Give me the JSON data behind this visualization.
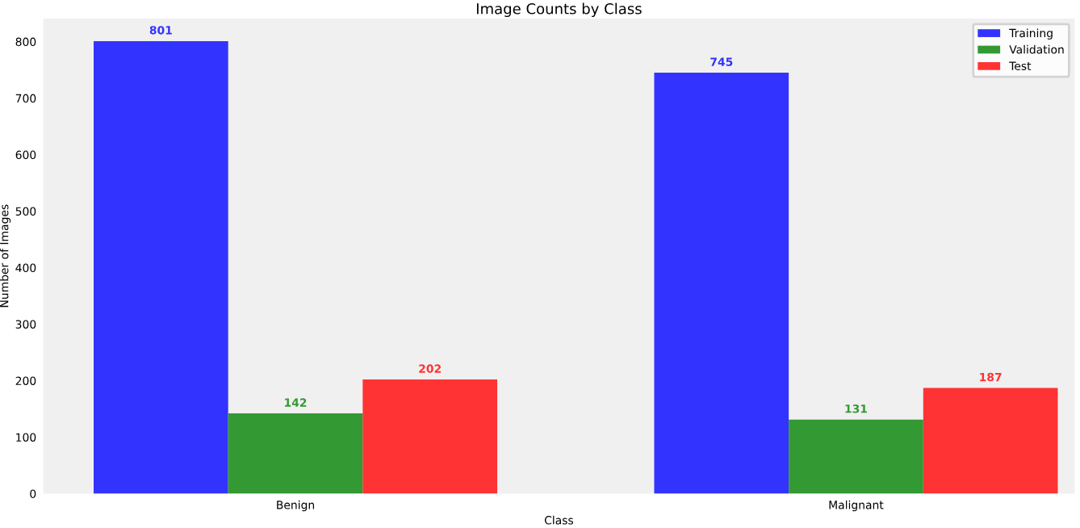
{
  "chart_data": {
    "type": "bar",
    "title": "Image Counts by Class",
    "xlabel": "Class",
    "ylabel": "Number of Images",
    "categories": [
      "Benign",
      "Malignant"
    ],
    "series": [
      {
        "name": "Training",
        "color": "#3333ff",
        "values": [
          801,
          745
        ]
      },
      {
        "name": "Validation",
        "color": "#339933",
        "values": [
          142,
          131
        ]
      },
      {
        "name": "Test",
        "color": "#ff3333",
        "values": [
          202,
          187
        ]
      }
    ],
    "ylim": [
      0,
      841
    ],
    "yticks": [
      0,
      100,
      200,
      300,
      400,
      500,
      600,
      700,
      800
    ],
    "data_labels": true,
    "legend": "top right",
    "grid": false
  }
}
